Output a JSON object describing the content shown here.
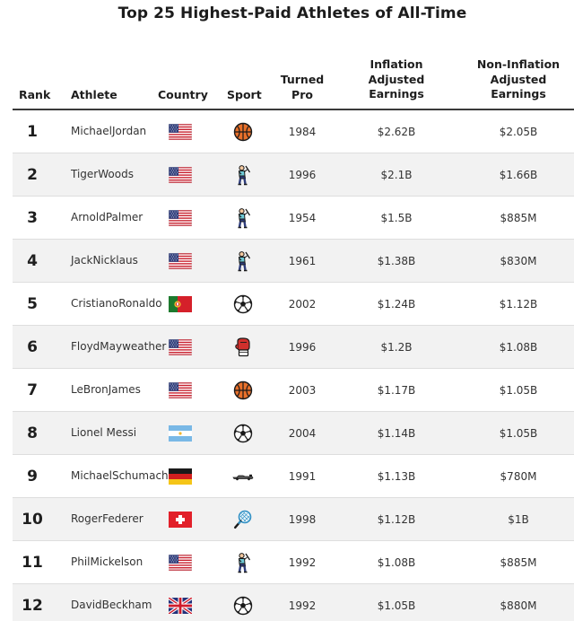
{
  "title": "Top 25 Highest-Paid Athletes of All-Time",
  "headers": {
    "rank": "Rank",
    "athlete": "Athlete",
    "country": "Country",
    "sport": "Sport",
    "turned_pro_1": "Turned",
    "turned_pro_2": "Pro",
    "inflation_1": "Inflation",
    "inflation_2": "Adjusted",
    "inflation_3": "Earnings",
    "non_inflation_1": "Non-Inflation",
    "non_inflation_2": "Adjusted",
    "non_inflation_3": "Earnings"
  },
  "rows": [
    {
      "rank": "1",
      "name_1": "Michael",
      "name_2": "Jordan",
      "country_flag": "usa-flag-icon",
      "sport_icon": "basketball-icon",
      "turned_pro": "1984",
      "inflation_adjusted": "$2.62B",
      "non_inflation_adjusted": "$2.05B"
    },
    {
      "rank": "2",
      "name_1": "Tiger",
      "name_2": "Woods",
      "country_flag": "usa-flag-icon",
      "sport_icon": "golfer-icon",
      "turned_pro": "1996",
      "inflation_adjusted": "$2.1B",
      "non_inflation_adjusted": "$1.66B"
    },
    {
      "rank": "3",
      "name_1": "Arnold",
      "name_2": "Palmer",
      "country_flag": "usa-flag-icon",
      "sport_icon": "golfer-icon",
      "turned_pro": "1954",
      "inflation_adjusted": "$1.5B",
      "non_inflation_adjusted": "$885M"
    },
    {
      "rank": "4",
      "name_1": "Jack",
      "name_2": "Nicklaus",
      "country_flag": "usa-flag-icon",
      "sport_icon": "golfer-icon",
      "turned_pro": "1961",
      "inflation_adjusted": "$1.38B",
      "non_inflation_adjusted": "$830M"
    },
    {
      "rank": "5",
      "name_1": "Cristiano",
      "name_2": "Ronaldo",
      "country_flag": "portugal-flag-icon",
      "sport_icon": "soccer-ball-icon",
      "turned_pro": "2002",
      "inflation_adjusted": "$1.24B",
      "non_inflation_adjusted": "$1.12B"
    },
    {
      "rank": "6",
      "name_1": "Floyd",
      "name_2": "Mayweather",
      "country_flag": "usa-flag-icon",
      "sport_icon": "boxing-glove-icon",
      "turned_pro": "1996",
      "inflation_adjusted": "$1.2B",
      "non_inflation_adjusted": "$1.08B"
    },
    {
      "rank": "7",
      "name_1": "LeBron",
      "name_2": "James",
      "country_flag": "usa-flag-icon",
      "sport_icon": "basketball-icon",
      "turned_pro": "2003",
      "inflation_adjusted": "$1.17B",
      "non_inflation_adjusted": "$1.05B"
    },
    {
      "rank": "8",
      "name_1": "Lionel Messi",
      "name_2": "",
      "country_flag": "argentina-flag-icon",
      "sport_icon": "soccer-ball-icon",
      "turned_pro": "2004",
      "inflation_adjusted": "$1.14B",
      "non_inflation_adjusted": "$1.05B"
    },
    {
      "rank": "9",
      "name_1": "Michael",
      "name_2": "Schumacher",
      "country_flag": "germany-flag-icon",
      "sport_icon": "race-car-icon",
      "turned_pro": "1991",
      "inflation_adjusted": "$1.13B",
      "non_inflation_adjusted": "$780M"
    },
    {
      "rank": "10",
      "name_1": "Roger",
      "name_2": "Federer",
      "country_flag": "switzerland-flag-icon",
      "sport_icon": "tennis-racket-icon",
      "turned_pro": "1998",
      "inflation_adjusted": "$1.12B",
      "non_inflation_adjusted": "$1B"
    },
    {
      "rank": "11",
      "name_1": "Phil",
      "name_2": "Mickelson",
      "country_flag": "usa-flag-icon",
      "sport_icon": "golfer-icon",
      "turned_pro": "1992",
      "inflation_adjusted": "$1.08B",
      "non_inflation_adjusted": "$885M"
    },
    {
      "rank": "12",
      "name_1": "David",
      "name_2": "Beckham",
      "country_flag": "uk-flag-icon",
      "sport_icon": "soccer-ball-icon",
      "turned_pro": "1992",
      "inflation_adjusted": "$1.05B",
      "non_inflation_adjusted": "$880M"
    }
  ],
  "colors": {
    "header_rule": "#3a3a3a",
    "row_stripe": "#f2f2f2",
    "basketball": "#e8702a",
    "golfer_shirt": "#6ec9d6",
    "boxing_glove": "#d0302c"
  }
}
